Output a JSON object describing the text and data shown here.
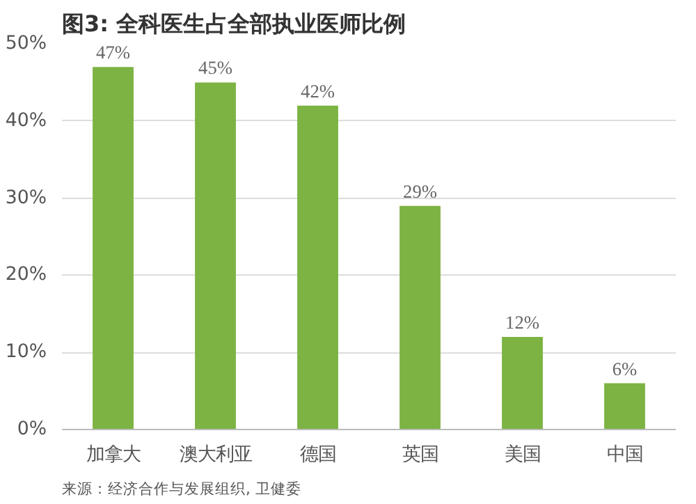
{
  "chart_data": {
    "type": "bar",
    "title": "图3: 全科医生占全部执业医师比例",
    "categories": [
      "加拿大",
      "澳大利亚",
      "德国",
      "英国",
      "美国",
      "中国"
    ],
    "values": [
      47,
      45,
      42,
      29,
      12,
      6
    ],
    "value_labels": [
      "47%",
      "45%",
      "42%",
      "29%",
      "12%",
      "6%"
    ],
    "color": "#7cb342",
    "ylim": [
      0,
      50
    ],
    "yticks": [
      {
        "value": 0,
        "label": "0%"
      },
      {
        "value": 10,
        "label": "10%"
      },
      {
        "value": 20,
        "label": "20%"
      },
      {
        "value": 30,
        "label": "30%"
      },
      {
        "value": 40,
        "label": "40%"
      },
      {
        "value": 50,
        "label": "50%"
      }
    ],
    "grid": "y",
    "annotations": [
      "来源：经济合作与发展组织, 卫健委"
    ]
  }
}
